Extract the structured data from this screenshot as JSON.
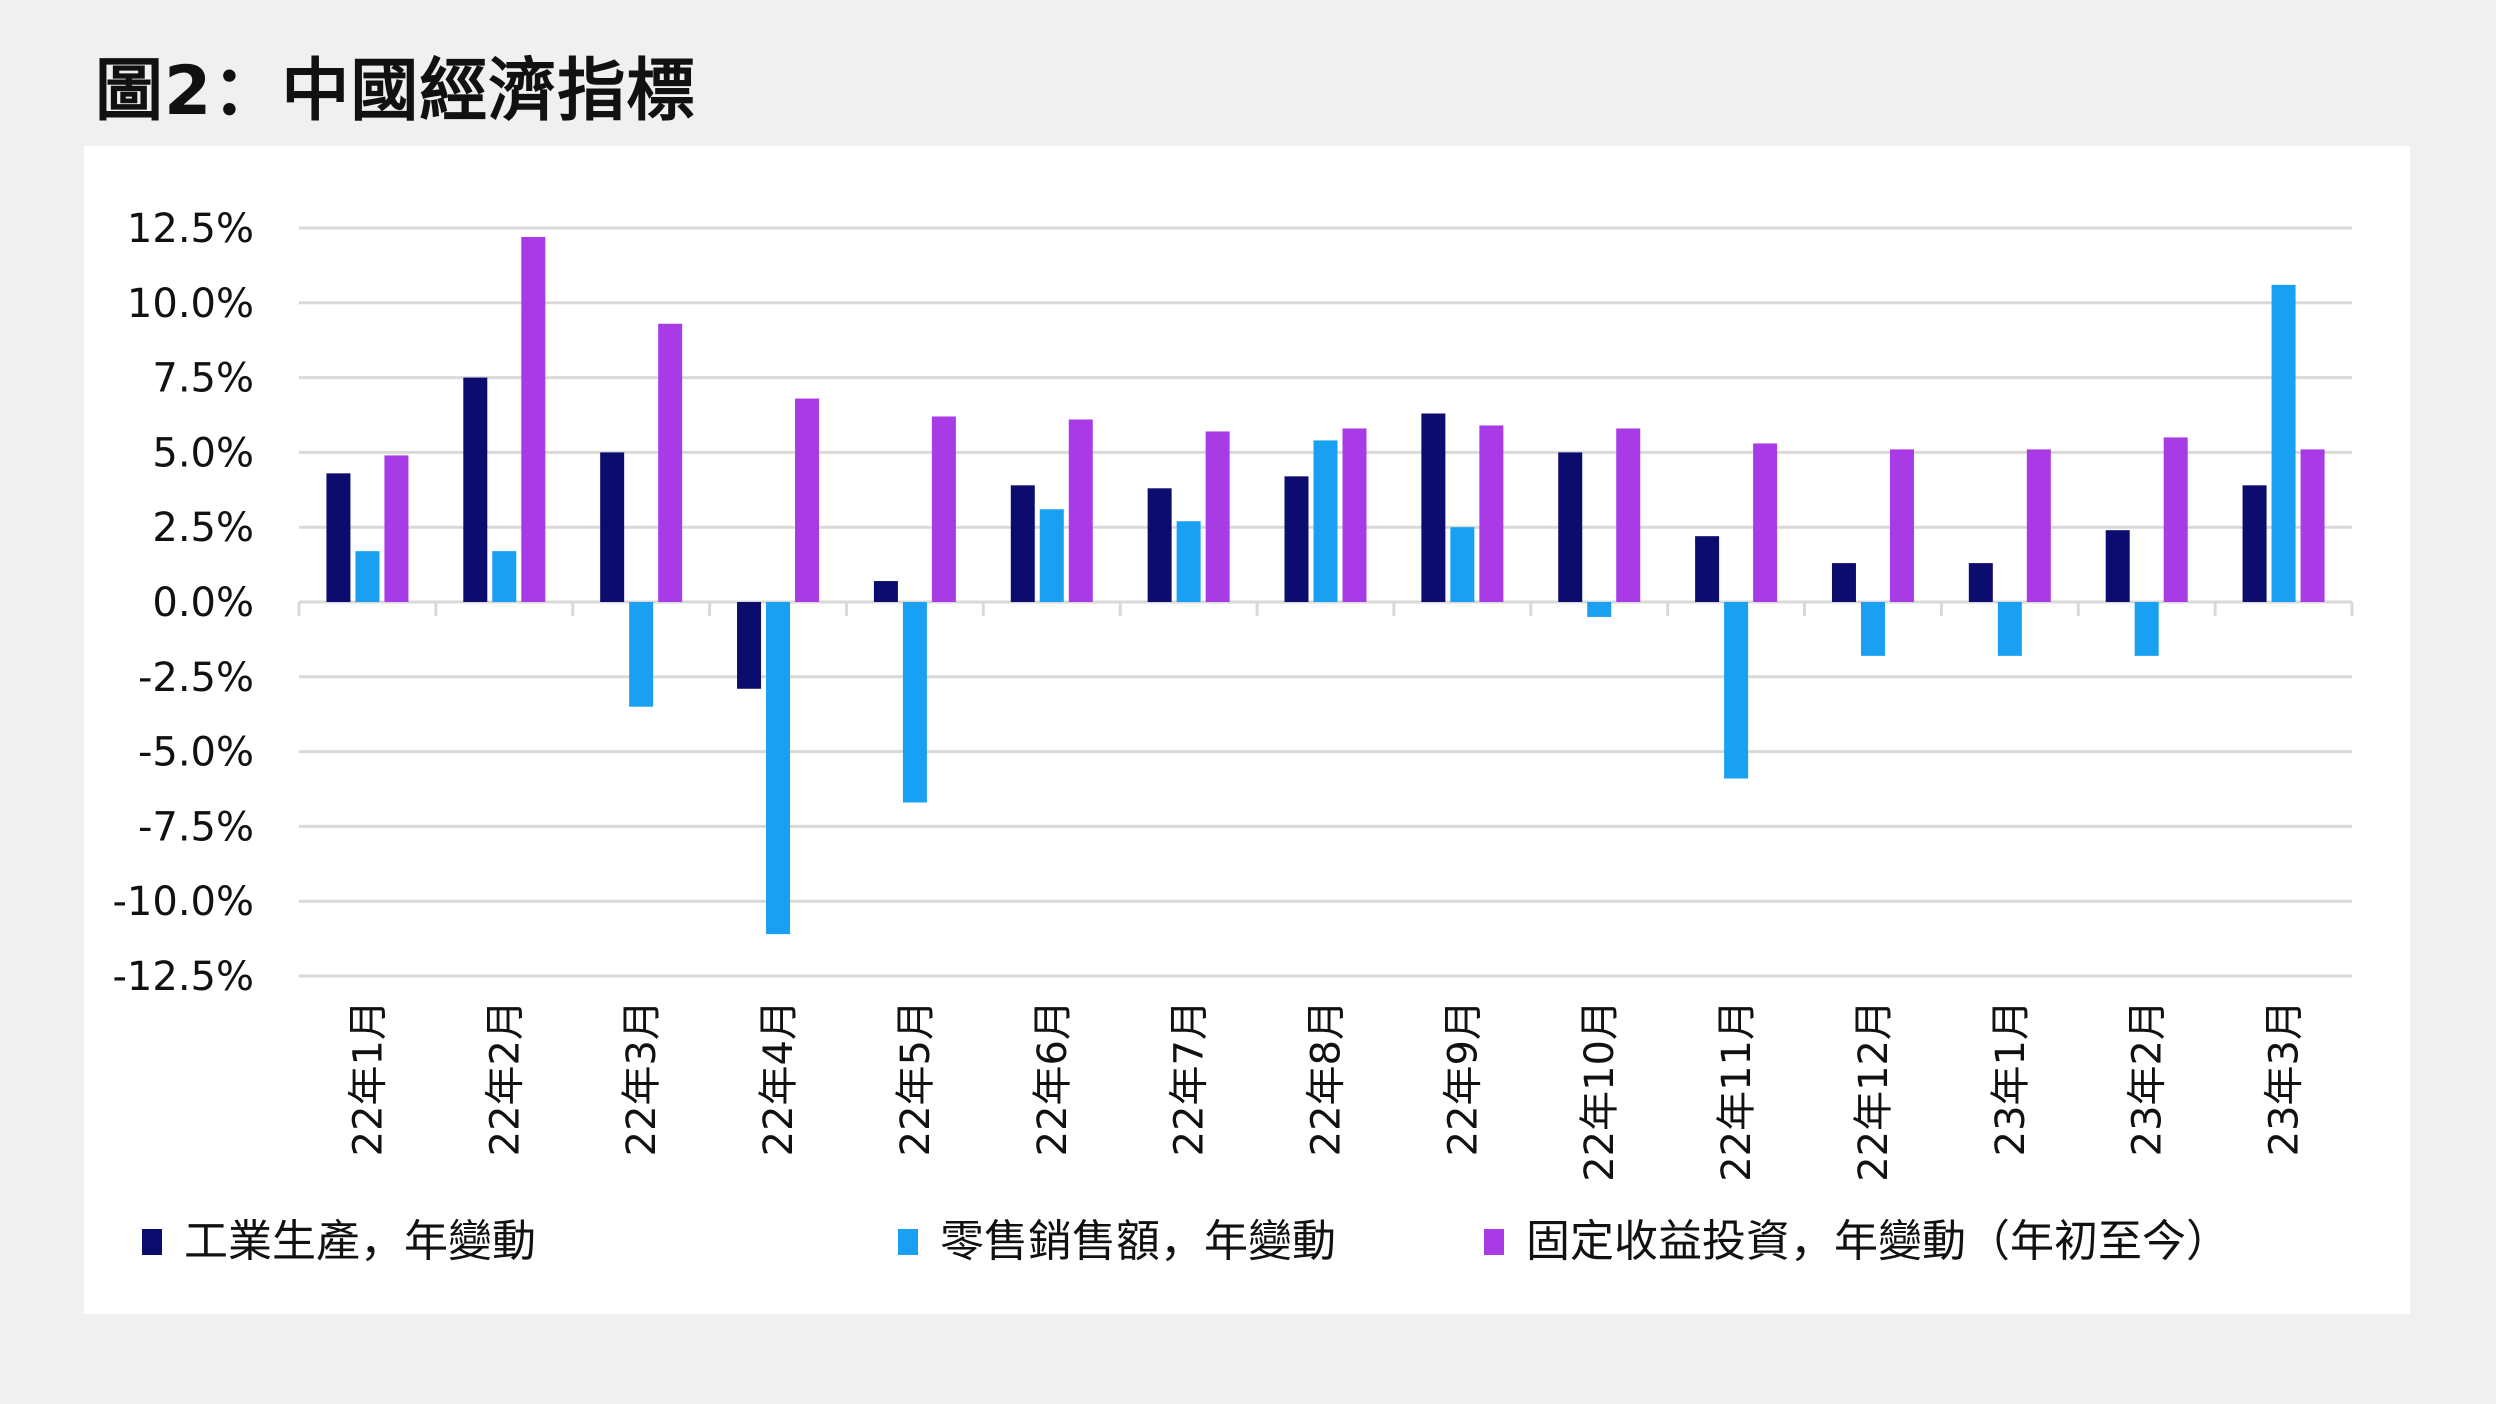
{
  "page": {
    "title": "圖2：中國經濟指標"
  },
  "colors": {
    "industrial": "#0c0c6e",
    "retail": "#1aa0f2",
    "investment": "#a83be6",
    "grid": "#d9d9d9",
    "text": "#111111",
    "background": "#ffffff"
  },
  "chart_data": {
    "type": "bar",
    "title": "",
    "xlabel": "",
    "ylabel": "",
    "ylim": [
      -12.5,
      12.5
    ],
    "yticks": [
      {
        "value": 12.5,
        "label": "12.5%"
      },
      {
        "value": 10.0,
        "label": "10.0%"
      },
      {
        "value": 7.5,
        "label": "7.5%"
      },
      {
        "value": 5.0,
        "label": "5.0%"
      },
      {
        "value": 2.5,
        "label": "2.5%"
      },
      {
        "value": 0.0,
        "label": "0.0%"
      },
      {
        "value": -2.5,
        "label": "-2.5%"
      },
      {
        "value": -5.0,
        "label": "-5.0%"
      },
      {
        "value": -7.5,
        "label": "-7.5%"
      },
      {
        "value": -10.0,
        "label": "-10.0%"
      },
      {
        "value": -12.5,
        "label": "-12.5%"
      }
    ],
    "categories": [
      "22年1月",
      "22年2月",
      "22年3月",
      "22年4月",
      "22年5月",
      "22年6月",
      "22年7月",
      "22年8月",
      "22年9月",
      "22年10月",
      "22年11月",
      "22年12月",
      "23年1月",
      "23年2月",
      "23年3月"
    ],
    "series": [
      {
        "key": "industrial",
        "name": "工業生產，年變動",
        "values": [
          4.3,
          7.5,
          5.0,
          -2.9,
          0.7,
          3.9,
          3.8,
          4.2,
          6.3,
          5.0,
          2.2,
          1.3,
          1.3,
          2.4,
          3.9
        ]
      },
      {
        "key": "retail",
        "name": "零售銷售額，年變動",
        "values": [
          1.7,
          1.7,
          -3.5,
          -11.1,
          -6.7,
          3.1,
          2.7,
          5.4,
          2.5,
          -0.5,
          -5.9,
          -1.8,
          -1.8,
          -1.8,
          10.6
        ]
      },
      {
        "key": "investment",
        "name": "固定收益投資，年變動（年初至今）",
        "values": [
          4.9,
          12.2,
          9.3,
          6.8,
          6.2,
          6.1,
          5.7,
          5.8,
          5.9,
          5.8,
          5.3,
          5.1,
          5.1,
          5.5,
          5.1
        ]
      }
    ],
    "legend_position": "bottom",
    "grid": true
  }
}
